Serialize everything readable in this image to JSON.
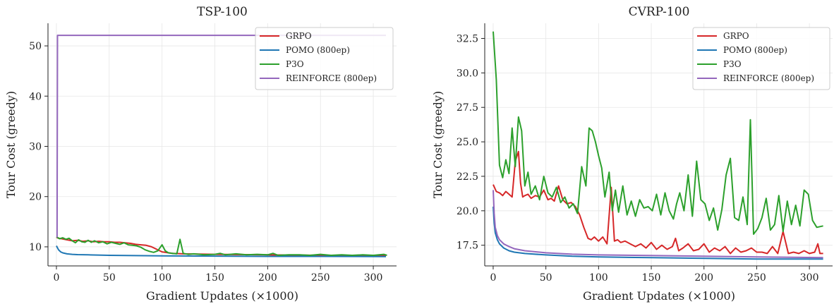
{
  "chart_data": [
    {
      "type": "line",
      "title": "TSP-100",
      "xlabel": "Gradient Updates (×1000)",
      "ylabel": "Tour Cost (greedy)",
      "xlim": [
        -8,
        322
      ],
      "ylim": [
        6.2,
        54.5
      ],
      "xticks": [
        0,
        50,
        100,
        150,
        200,
        250,
        300
      ],
      "yticks": [
        10,
        20,
        30,
        40,
        50
      ],
      "grid": true,
      "legend": "top-right",
      "series": [
        {
          "name": "GRPO",
          "color": "#d62728",
          "x": [
            0,
            2,
            5,
            10,
            15,
            20,
            25,
            30,
            35,
            40,
            45,
            50,
            55,
            60,
            65,
            70,
            75,
            80,
            85,
            90,
            95,
            100,
            110,
            120,
            150,
            200,
            250,
            312
          ],
          "y": [
            11.9,
            11.7,
            11.6,
            11.4,
            11.2,
            11.3,
            11.1,
            11.2,
            11.0,
            11.1,
            11.0,
            11.0,
            10.9,
            10.9,
            10.8,
            10.7,
            10.5,
            10.4,
            10.3,
            10.0,
            9.5,
            9.0,
            8.7,
            8.6,
            8.5,
            8.4,
            8.3,
            8.25
          ]
        },
        {
          "name": "POMO (800ep)",
          "color": "#1f77b4",
          "x": [
            0,
            1,
            2,
            4,
            6,
            10,
            15,
            20,
            30,
            50,
            75,
            100,
            150,
            200,
            250,
            312
          ],
          "y": [
            10.2,
            9.8,
            9.4,
            9.0,
            8.8,
            8.6,
            8.5,
            8.45,
            8.4,
            8.3,
            8.25,
            8.2,
            8.15,
            8.1,
            8.1,
            8.05
          ]
        },
        {
          "name": "P3O",
          "color": "#2ca02c",
          "x": [
            0,
            3,
            6,
            9,
            12,
            15,
            18,
            21,
            24,
            27,
            30,
            33,
            36,
            40,
            44,
            48,
            52,
            56,
            60,
            64,
            68,
            72,
            76,
            80,
            84,
            88,
            92,
            96,
            100,
            103,
            106,
            110,
            114,
            117,
            120,
            125,
            130,
            140,
            150,
            155,
            160,
            170,
            180,
            190,
            200,
            205,
            210,
            220,
            230,
            240,
            250,
            260,
            270,
            280,
            290,
            300,
            310,
            313
          ],
          "y": [
            12.0,
            11.6,
            11.8,
            11.5,
            11.7,
            11.2,
            10.8,
            11.4,
            11.0,
            10.9,
            11.3,
            10.9,
            11.2,
            10.8,
            11.0,
            10.6,
            10.9,
            10.7,
            10.5,
            10.8,
            10.4,
            10.3,
            10.2,
            9.9,
            9.4,
            9.1,
            8.9,
            9.2,
            10.4,
            9.2,
            8.8,
            8.7,
            8.6,
            11.5,
            8.7,
            8.5,
            8.6,
            8.4,
            8.5,
            8.7,
            8.4,
            8.6,
            8.4,
            8.5,
            8.4,
            8.7,
            8.3,
            8.4,
            8.4,
            8.3,
            8.5,
            8.3,
            8.4,
            8.3,
            8.4,
            8.3,
            8.5,
            8.3
          ]
        },
        {
          "name": "REINFORCE (800ep)",
          "color": "#9467bd",
          "x": [
            0,
            0.6,
            1,
            312
          ],
          "y": [
            12.0,
            12.0,
            52.1,
            52.1
          ]
        }
      ]
    },
    {
      "type": "line",
      "title": "CVRP-100",
      "xlabel": "Gradient Updates (×1000)",
      "ylabel": "Tour Cost (greedy)",
      "xlim": [
        -8,
        322
      ],
      "ylim": [
        16.0,
        33.6
      ],
      "xticks": [
        0,
        50,
        100,
        150,
        200,
        250,
        300
      ],
      "yticks": [
        17.5,
        20.0,
        22.5,
        25.0,
        27.5,
        30.0,
        32.5
      ],
      "grid": true,
      "legend": "top-right",
      "series": [
        {
          "name": "GRPO",
          "color": "#d62728",
          "x": [
            0,
            3,
            6,
            9,
            12,
            15,
            18,
            21,
            24,
            26,
            28,
            30,
            33,
            36,
            40,
            44,
            48,
            52,
            55,
            58,
            62,
            66,
            70,
            74,
            78,
            82,
            86,
            90,
            93,
            96,
            100,
            104,
            108,
            112,
            115,
            118,
            121,
            125,
            130,
            135,
            140,
            145,
            150,
            155,
            160,
            165,
            170,
            173,
            176,
            180,
            185,
            190,
            195,
            200,
            205,
            210,
            215,
            220,
            225,
            230,
            235,
            240,
            245,
            250,
            255,
            260,
            265,
            270,
            275,
            280,
            285,
            290,
            295,
            300,
            305,
            308,
            310,
            313
          ],
          "y": [
            21.9,
            21.4,
            21.3,
            21.1,
            21.4,
            21.2,
            21.0,
            23.6,
            24.3,
            22.0,
            21.0,
            21.1,
            21.2,
            20.9,
            21.1,
            21.0,
            21.5,
            20.8,
            20.9,
            20.7,
            21.8,
            20.8,
            20.5,
            20.6,
            20.3,
            19.7,
            18.8,
            18.0,
            17.9,
            18.1,
            17.8,
            18.1,
            17.6,
            21.7,
            17.8,
            17.9,
            17.7,
            17.8,
            17.6,
            17.4,
            17.6,
            17.3,
            17.7,
            17.2,
            17.5,
            17.2,
            17.4,
            18.0,
            17.1,
            17.3,
            17.6,
            17.1,
            17.2,
            17.6,
            17.0,
            17.3,
            17.1,
            17.4,
            16.9,
            17.3,
            17.0,
            17.1,
            17.3,
            17.0,
            17.0,
            16.9,
            17.4,
            16.9,
            18.5,
            16.9,
            17.0,
            16.9,
            17.1,
            16.9,
            17.0,
            17.6,
            16.9,
            16.9
          ]
        },
        {
          "name": "POMO (800ep)",
          "color": "#1f77b4",
          "x": [
            0,
            1,
            2,
            4,
            6,
            10,
            15,
            20,
            30,
            50,
            75,
            100,
            150,
            200,
            250,
            313
          ],
          "y": [
            20.3,
            19.1,
            18.4,
            17.9,
            17.6,
            17.3,
            17.1,
            17.0,
            16.9,
            16.8,
            16.7,
            16.65,
            16.6,
            16.55,
            16.5,
            16.5
          ]
        },
        {
          "name": "P3O",
          "color": "#2ca02c",
          "x": [
            0,
            3,
            6,
            9,
            12,
            15,
            18,
            21,
            24,
            27,
            30,
            33,
            36,
            40,
            44,
            48,
            52,
            56,
            60,
            64,
            68,
            72,
            76,
            80,
            84,
            88,
            91,
            94,
            97,
            100,
            103,
            106,
            110,
            113,
            116,
            119,
            123,
            127,
            131,
            135,
            139,
            143,
            147,
            151,
            155,
            159,
            163,
            167,
            171,
            174,
            177,
            181,
            185,
            189,
            193,
            197,
            201,
            205,
            209,
            213,
            217,
            221,
            225,
            229,
            233,
            237,
            241,
            244,
            247,
            251,
            255,
            259,
            263,
            267,
            271,
            275,
            279,
            283,
            287,
            291,
            295,
            299,
            303,
            307,
            313
          ],
          "y": [
            33.0,
            29.5,
            23.3,
            22.4,
            23.7,
            22.7,
            26.0,
            23.2,
            26.8,
            25.8,
            21.8,
            22.8,
            21.2,
            21.8,
            20.8,
            22.5,
            21.3,
            21.0,
            21.7,
            20.6,
            21.0,
            20.2,
            20.5,
            19.8,
            23.2,
            21.8,
            26.0,
            25.8,
            25.0,
            24.0,
            23.1,
            21.0,
            22.8,
            20.0,
            21.5,
            19.9,
            21.8,
            19.7,
            20.7,
            19.6,
            20.8,
            20.2,
            20.3,
            20.0,
            21.2,
            19.7,
            21.3,
            20.0,
            19.4,
            20.5,
            21.3,
            20.0,
            22.6,
            19.6,
            23.6,
            20.8,
            20.5,
            19.3,
            20.2,
            18.6,
            20.1,
            22.6,
            23.8,
            19.5,
            19.3,
            21.0,
            19.0,
            26.6,
            18.3,
            18.7,
            19.5,
            20.9,
            18.6,
            19.0,
            21.1,
            18.5,
            20.7,
            19.0,
            20.4,
            18.9,
            21.5,
            21.2,
            19.3,
            18.8,
            18.9
          ]
        },
        {
          "name": "REINFORCE (800ep)",
          "color": "#9467bd",
          "x": [
            0,
            1,
            2,
            4,
            6,
            10,
            15,
            20,
            30,
            50,
            75,
            100,
            150,
            200,
            250,
            313
          ],
          "y": [
            21.5,
            19.8,
            18.8,
            18.2,
            17.9,
            17.6,
            17.4,
            17.25,
            17.1,
            16.95,
            16.85,
            16.8,
            16.75,
            16.7,
            16.65,
            16.6
          ]
        }
      ]
    }
  ]
}
